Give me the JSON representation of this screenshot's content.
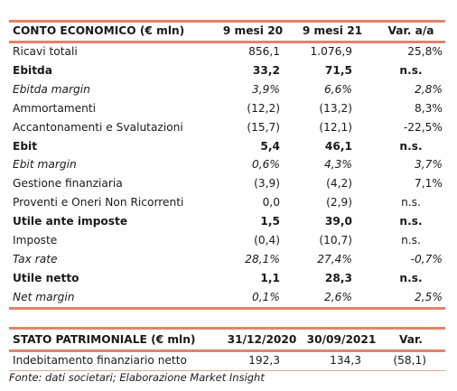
{
  "income": {
    "headers": [
      "CONTO ECONOMICO (€ mln)",
      "9 mesi 20",
      "9 mesi 21",
      "Var. a/a"
    ],
    "rows": [
      [
        "Ricavi totali",
        "856,1",
        "1.076,9",
        "25,8%"
      ],
      [
        "Ebitda",
        "33,2",
        "71,5",
        "n.s."
      ],
      [
        "Ebitda margin",
        "3,9%",
        "6,6%",
        "2,8%"
      ],
      [
        "Ammortamenti",
        "(12,2)",
        "(13,2)",
        "8,3%"
      ],
      [
        "Accantonamenti e Svalutazioni",
        "(15,7)",
        "(12,1)",
        "-22,5%"
      ],
      [
        "Ebit",
        "5,4",
        "46,1",
        "n.s."
      ],
      [
        "Ebit margin",
        "0,6%",
        "4,3%",
        "3,7%"
      ],
      [
        "Gestione finanziaria",
        "(3,9)",
        "(4,2)",
        "7,1%"
      ],
      [
        "Proventi e Oneri Non Ricorrenti",
        "0,0",
        "(2,9)",
        "n.s."
      ],
      [
        "Utile ante imposte",
        "1,5",
        "39,0",
        "n.s."
      ],
      [
        "Imposte",
        "(0,4)",
        "(10,7)",
        "n.s."
      ],
      [
        "Tax rate",
        "28,1%",
        "27,4%",
        "-0,7%"
      ],
      [
        "Utile netto",
        "1,1",
        "28,3",
        "n.s."
      ],
      [
        "Net margin",
        "0,1%",
        "2,6%",
        "2,5%"
      ]
    ]
  },
  "balance": {
    "headers": [
      "STATO PATRIMONIALE (€ mln)",
      "31/12/2020",
      "30/09/2021",
      "Var."
    ],
    "rows": [
      [
        "Indebitamento finanziario netto",
        "192,3",
        "134,3",
        "(58,1)"
      ]
    ]
  },
  "footnote": "Fonte: dati societari; Elaborazione Market Insight",
  "colors": {
    "rule": "#e2836a"
  }
}
